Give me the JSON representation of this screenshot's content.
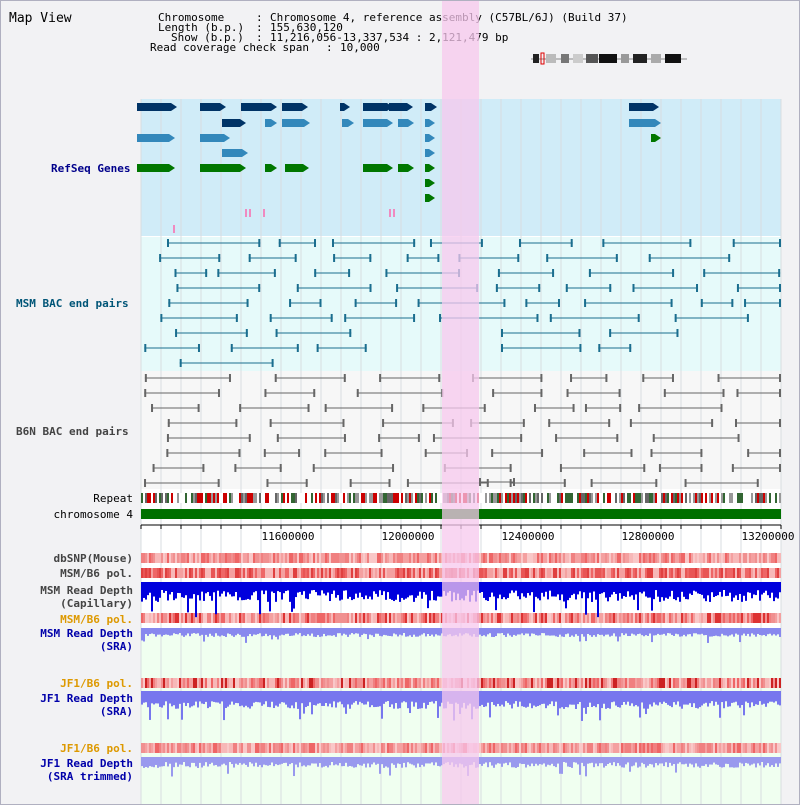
{
  "page": {
    "title": "Map View"
  },
  "info": {
    "chromosome_key": "Chromosome",
    "chromosome_value": "Chromosome 4, reference assembly (C57BL/6J) (Build 37)",
    "length_key": "Length (b.p.)",
    "length_value": "155,630,120",
    "show_key": "Show (b.p.)",
    "show_value": "11,216,056-13,337,534 : 2,121,479 bp",
    "coverage_key": "Read coverage check span",
    "coverage_value": "10,000"
  },
  "tracks": {
    "refseq": "RefSeq Genes",
    "msm_bac": "MSM BAC end pairs",
    "b6n_bac": "B6N BAC end pairs",
    "repeat": "Repeat",
    "chromosome": "chromosome 4",
    "dbsnp": "dbSNP(Mouse)",
    "msm_b6_pol": "MSM/B6 pol.",
    "msm_read_depth_cap_1": "MSM Read Depth",
    "msm_read_depth_cap_2": "(Capillary)",
    "msm_b6_pol_2": "MSM/B6 pol.",
    "msm_read_depth_sra_1": "MSM Read Depth",
    "msm_read_depth_sra_2": "(SRA)",
    "jf1_b6_pol": "JF1/B6 pol.",
    "jf1_read_depth_sra_1": "JF1 Read Depth",
    "jf1_read_depth_sra_2": "(SRA)",
    "jf1_b6_pol_2": "JF1/B6 pol.",
    "jf1_read_depth_trim_1": "JF1 Read Depth",
    "jf1_read_depth_trim_2": "(SRA trimmed)"
  },
  "axis": {
    "ticks": [
      "11600000",
      "12000000",
      "12400000",
      "12800000",
      "13200000"
    ]
  },
  "colors": {
    "refseq_bg": "#d0ecf8",
    "bac_bg": "#e6fafa",
    "highlight": "#f7c8ee",
    "gene_dark": "#003366",
    "gene_mid": "#3388bb",
    "gene_green": "#007700",
    "chromosome_bar": "#007000",
    "label_blue": "#00008b",
    "label_teal": "#005577",
    "label_gray": "#444444",
    "label_orange": "#dd9900",
    "label_dark_blue": "#0000aa"
  }
}
